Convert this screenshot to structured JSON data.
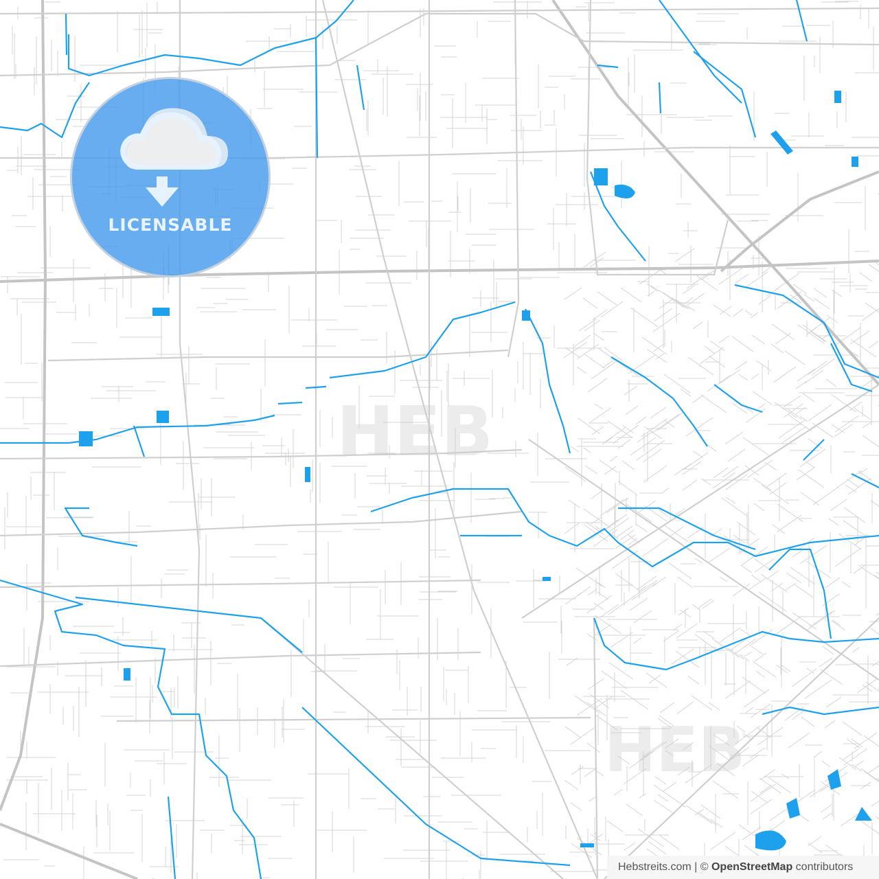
{
  "map": {
    "colors": {
      "background": "#ffffff",
      "roads": "#cccccc",
      "water": "#1ea1ec",
      "badge": "#4a9deb"
    },
    "badge": {
      "label": "LICENSABLE",
      "icon": "cloud-download-icon"
    },
    "attribution": {
      "site": "Hebstreits.com",
      "separator": " | © ",
      "source": "OpenStreetMap",
      "suffix": " contributors"
    }
  }
}
